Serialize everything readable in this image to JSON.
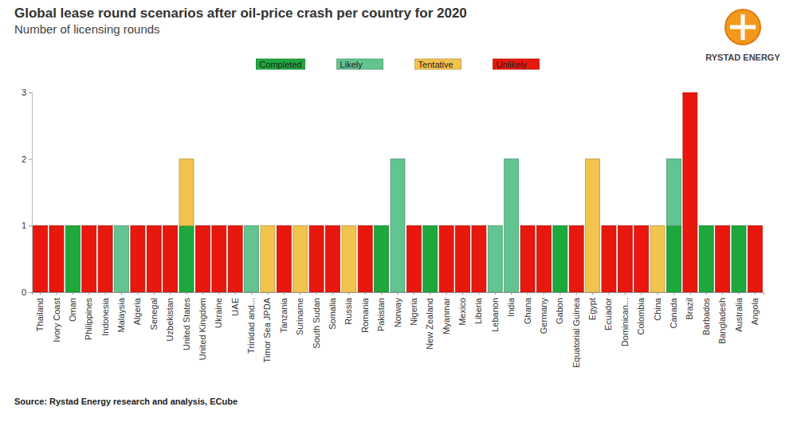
{
  "chart_data": {
    "type": "bar",
    "title": "Global lease round scenarios after oil-price crash per country for 2020",
    "subtitle": "Number of licensing rounds",
    "source": "Source: Rystad Energy research and analysis, ECube",
    "annotations": [
      "RYSTAD ENERGY"
    ],
    "categories": [
      "Thailand",
      "Ivory Coast",
      "Oman",
      "Philippines",
      "Indonesia",
      "Malaysia",
      "Algeria",
      "Senegal",
      "Uzbekistan",
      "United States",
      "United Kingdom",
      "Ukraine",
      "UAE",
      "Trinidad and...",
      "Timor Sea JPDA",
      "Tanzania",
      "Suriname",
      "South Sudan",
      "Somalia",
      "Russia",
      "Romania",
      "Pakistan",
      "Norway",
      "Nigeria",
      "New Zealand",
      "Myanmar",
      "Mexico",
      "Liberia",
      "Lebanon",
      "India",
      "Ghana",
      "Germany",
      "Gabon",
      "Equatorial Guinea",
      "Egypt",
      "Ecuador",
      "Dominican...",
      "Colombia",
      "China",
      "Canada",
      "Brazil",
      "Barbados",
      "Bangladesh",
      "Australia",
      "Angola"
    ],
    "series": [
      {
        "name": "Completed",
        "color": "#1ea83c",
        "values": [
          0,
          0,
          1,
          0,
          0,
          0,
          0,
          0,
          0,
          1,
          0,
          0,
          0,
          0,
          0,
          0,
          0,
          0,
          0,
          0,
          0,
          1,
          0,
          0,
          1,
          0,
          0,
          0,
          0,
          0,
          0,
          0,
          1,
          0,
          0,
          0,
          0,
          0,
          0,
          1,
          0,
          1,
          0,
          1,
          0
        ]
      },
      {
        "name": "Likely",
        "color": "#62c490",
        "values": [
          0,
          0,
          0,
          0,
          0,
          1,
          0,
          0,
          0,
          0,
          0,
          0,
          0,
          1,
          0,
          0,
          0,
          0,
          0,
          0,
          0,
          0,
          2,
          0,
          0,
          0,
          0,
          0,
          1,
          2,
          0,
          0,
          0,
          0,
          0,
          0,
          0,
          0,
          0,
          1,
          0,
          0,
          0,
          0,
          0
        ]
      },
      {
        "name": "Tentative",
        "color": "#f2c34d",
        "values": [
          0,
          0,
          0,
          0,
          0,
          0,
          0,
          0,
          0,
          1,
          0,
          0,
          0,
          0,
          1,
          0,
          1,
          0,
          0,
          1,
          0,
          0,
          0,
          0,
          0,
          0,
          0,
          0,
          0,
          0,
          0,
          0,
          0,
          0,
          2,
          0,
          0,
          0,
          1,
          0,
          0,
          0,
          0,
          0,
          0
        ]
      },
      {
        "name": "Unlikely",
        "color": "#e8180e",
        "values": [
          1,
          1,
          0,
          1,
          1,
          0,
          1,
          1,
          1,
          0,
          1,
          1,
          1,
          0,
          0,
          1,
          0,
          1,
          1,
          0,
          1,
          0,
          0,
          1,
          0,
          1,
          1,
          1,
          0,
          0,
          1,
          1,
          0,
          1,
          0,
          1,
          1,
          1,
          0,
          0,
          3,
          0,
          1,
          0,
          1
        ]
      }
    ],
    "stacked": true,
    "ylim": [
      0,
      3
    ],
    "yticks": [
      0,
      1,
      2,
      3
    ],
    "grid": false,
    "legend": "top"
  }
}
